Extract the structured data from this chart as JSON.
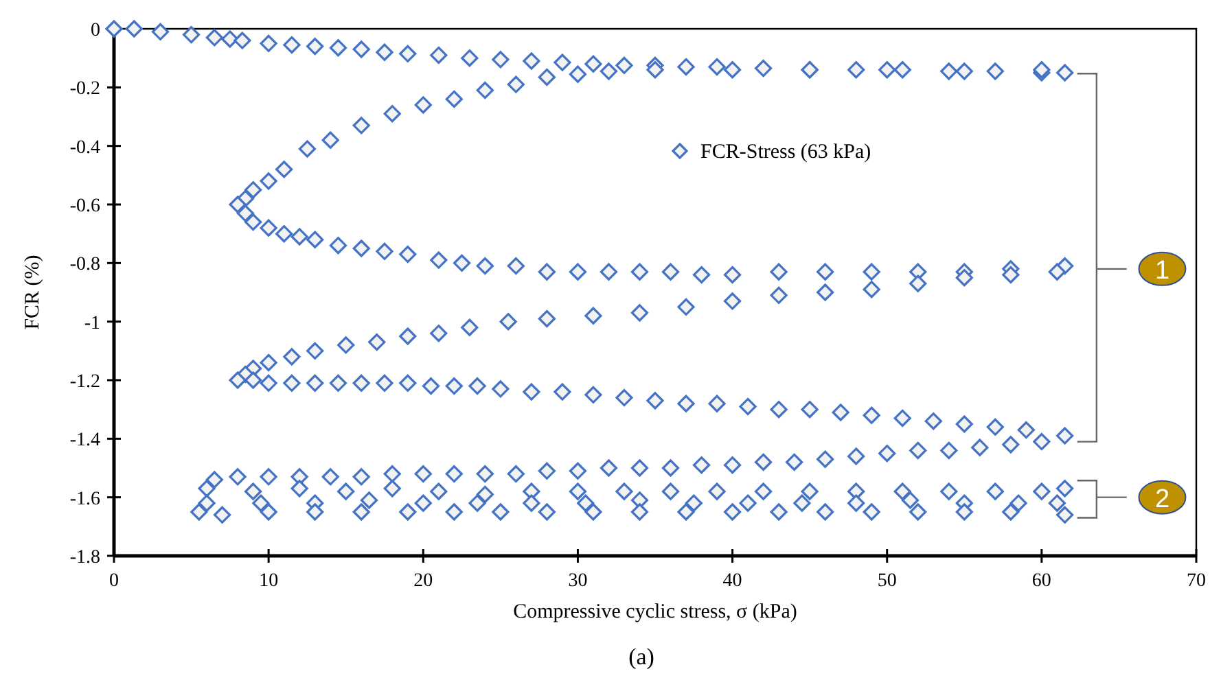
{
  "chart_data": {
    "type": "scatter",
    "xlabel": "Compressive cyclic stress, σ (kPa)",
    "ylabel": "FCR (%)",
    "xlim": [
      0,
      70
    ],
    "ylim": [
      -1.8,
      0
    ],
    "xticks": [
      0,
      10,
      20,
      30,
      40,
      50,
      60,
      70
    ],
    "yticks": [
      0,
      -0.2,
      -0.4,
      -0.6,
      -0.8,
      -1,
      -1.2,
      -1.4,
      -1.6,
      -1.8
    ],
    "legend": "top",
    "marker": "diamond",
    "grid": false,
    "annotations": [
      "1",
      "2",
      "(a)"
    ],
    "series": [
      {
        "name": "FCR-Stress (63 kPa)",
        "color": "#4472c4",
        "x": [
          0,
          1.3,
          3,
          5,
          6.5,
          7.5,
          8.3,
          10,
          11.5,
          13,
          14.5,
          16,
          17.5,
          19,
          21,
          23,
          25,
          27,
          29,
          31,
          33,
          35,
          37,
          39,
          42,
          45,
          48,
          51,
          54,
          57,
          60,
          61.5,
          60,
          55,
          50,
          45,
          40,
          35,
          32,
          30,
          28,
          26,
          24,
          22,
          20,
          18,
          16,
          14,
          12.5,
          11,
          10,
          9,
          8.5,
          8,
          8.5,
          9,
          10,
          11,
          12,
          13,
          14.5,
          16,
          17.5,
          19,
          21,
          22.5,
          24,
          26,
          28,
          30,
          32,
          34,
          36,
          38,
          40,
          43,
          46,
          49,
          52,
          55,
          58,
          61.5,
          61,
          58,
          55,
          52,
          49,
          46,
          43,
          40,
          37,
          34,
          31,
          28,
          25.5,
          23,
          21,
          19,
          17,
          15,
          13,
          11.5,
          10,
          9,
          8.5,
          8,
          9,
          10,
          11.5,
          13,
          14.5,
          16,
          17.5,
          19,
          20.5,
          22,
          23.5,
          25,
          27,
          29,
          31,
          33,
          35,
          37,
          39,
          41,
          43,
          45,
          47,
          49,
          51,
          53,
          55,
          57,
          59,
          61.5,
          60,
          58,
          56,
          54,
          52,
          50,
          48,
          46,
          44,
          42,
          40,
          38,
          36,
          34,
          32,
          30,
          28,
          26,
          24,
          22,
          20,
          18,
          16,
          14,
          12,
          10,
          8,
          6.5,
          6,
          9,
          12,
          15,
          18,
          21,
          24,
          27,
          30,
          33,
          36,
          39,
          42,
          45,
          48,
          51,
          54,
          57,
          60,
          61.5,
          61,
          58.5,
          55,
          51.5,
          48,
          44.5,
          41,
          37.5,
          34,
          30.5,
          27,
          23.5,
          20,
          16.5,
          13,
          9.5,
          6,
          5.5,
          7,
          10,
          13,
          16,
          19,
          22,
          25,
          28,
          31,
          34,
          37,
          40,
          43,
          46,
          49,
          52,
          55,
          58,
          61.5
        ],
        "values": [
          0,
          0,
          -0.01,
          -0.02,
          -0.03,
          -0.035,
          -0.04,
          -0.05,
          -0.055,
          -0.06,
          -0.065,
          -0.07,
          -0.08,
          -0.085,
          -0.09,
          -0.1,
          -0.105,
          -0.11,
          -0.115,
          -0.12,
          -0.125,
          -0.125,
          -0.13,
          -0.13,
          -0.135,
          -0.14,
          -0.14,
          -0.14,
          -0.145,
          -0.145,
          -0.15,
          -0.15,
          -0.14,
          -0.145,
          -0.14,
          -0.14,
          -0.14,
          -0.14,
          -0.145,
          -0.155,
          -0.165,
          -0.19,
          -0.21,
          -0.24,
          -0.26,
          -0.29,
          -0.33,
          -0.38,
          -0.41,
          -0.48,
          -0.52,
          -0.55,
          -0.58,
          -0.6,
          -0.63,
          -0.66,
          -0.68,
          -0.7,
          -0.71,
          -0.72,
          -0.74,
          -0.75,
          -0.76,
          -0.77,
          -0.79,
          -0.8,
          -0.81,
          -0.81,
          -0.83,
          -0.83,
          -0.83,
          -0.83,
          -0.83,
          -0.84,
          -0.84,
          -0.83,
          -0.83,
          -0.83,
          -0.83,
          -0.83,
          -0.82,
          -0.81,
          -0.83,
          -0.84,
          -0.85,
          -0.87,
          -0.89,
          -0.9,
          -0.91,
          -0.93,
          -0.95,
          -0.97,
          -0.98,
          -0.99,
          -1,
          -1.02,
          -1.04,
          -1.05,
          -1.07,
          -1.08,
          -1.1,
          -1.12,
          -1.14,
          -1.16,
          -1.18,
          -1.2,
          -1.2,
          -1.21,
          -1.21,
          -1.21,
          -1.21,
          -1.21,
          -1.21,
          -1.21,
          -1.22,
          -1.22,
          -1.22,
          -1.23,
          -1.24,
          -1.24,
          -1.25,
          -1.26,
          -1.27,
          -1.28,
          -1.28,
          -1.29,
          -1.3,
          -1.3,
          -1.31,
          -1.32,
          -1.33,
          -1.34,
          -1.35,
          -1.36,
          -1.37,
          -1.39,
          -1.41,
          -1.42,
          -1.43,
          -1.44,
          -1.44,
          -1.45,
          -1.46,
          -1.47,
          -1.48,
          -1.48,
          -1.49,
          -1.49,
          -1.5,
          -1.5,
          -1.5,
          -1.51,
          -1.51,
          -1.52,
          -1.52,
          -1.52,
          -1.52,
          -1.52,
          -1.53,
          -1.53,
          -1.53,
          -1.53,
          -1.53,
          -1.54,
          -1.57,
          -1.58,
          -1.57,
          -1.58,
          -1.57,
          -1.58,
          -1.59,
          -1.58,
          -1.58,
          -1.58,
          -1.58,
          -1.58,
          -1.58,
          -1.58,
          -1.58,
          -1.58,
          -1.58,
          -1.58,
          -1.58,
          -1.57,
          -1.62,
          -1.62,
          -1.62,
          -1.61,
          -1.62,
          -1.62,
          -1.62,
          -1.62,
          -1.61,
          -1.62,
          -1.62,
          -1.62,
          -1.62,
          -1.61,
          -1.62,
          -1.62,
          -1.62,
          -1.65,
          -1.66,
          -1.65,
          -1.65,
          -1.65,
          -1.65,
          -1.65,
          -1.65,
          -1.65,
          -1.65,
          -1.65,
          -1.65,
          -1.65,
          -1.65,
          -1.65,
          -1.65,
          -1.65,
          -1.65,
          -1.65,
          -1.66
        ]
      }
    ]
  }
}
